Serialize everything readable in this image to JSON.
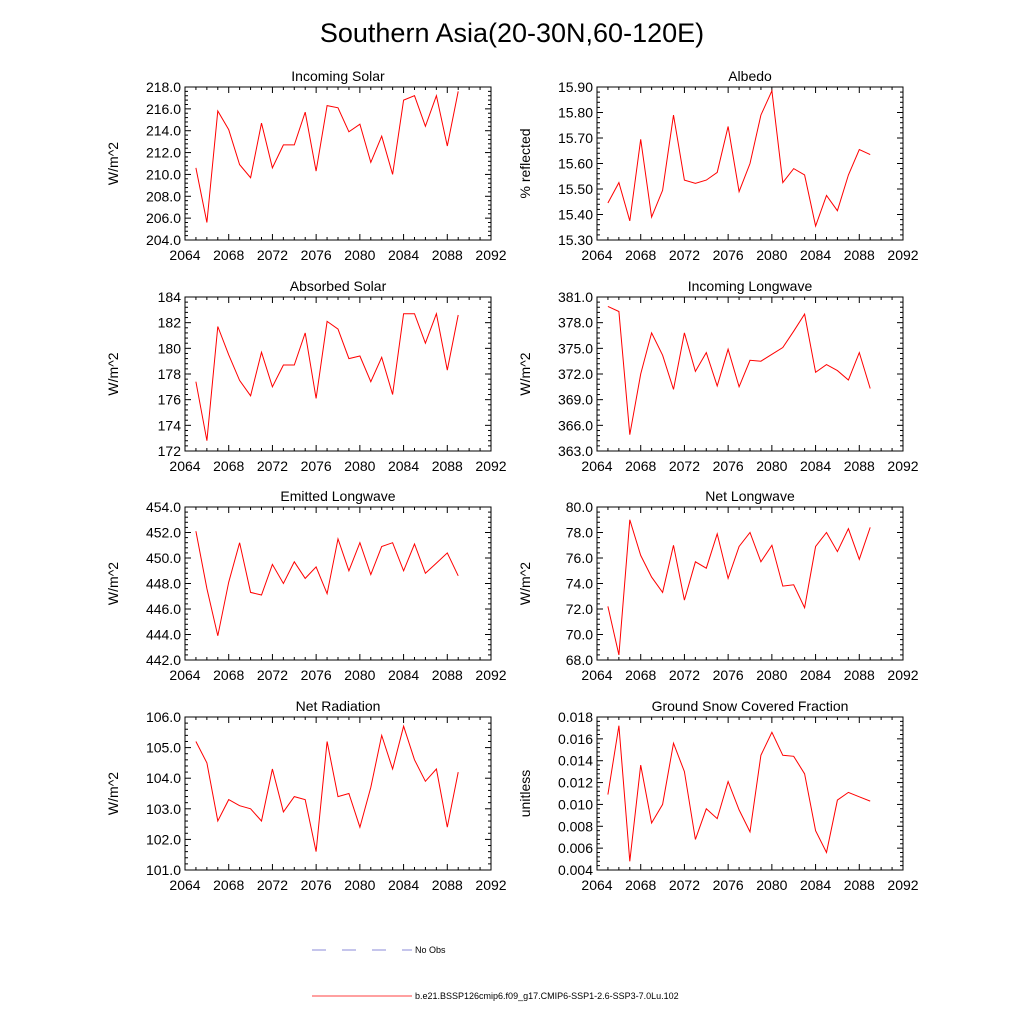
{
  "figure": {
    "title": "Southern Asia(20-30N,60-120E)",
    "series_color": "#ff0000",
    "obs_color": "#6666cc"
  },
  "legend": {
    "obs_label": "No Obs",
    "model_label": "b.e21.BSSP126cmip6.f09_g17.CMIP6-SSP1-2.6-SSP3-7.0Lu.102"
  },
  "chart_data": [
    {
      "type": "line",
      "title": "Incoming Solar",
      "ylabel": "W/m^2",
      "xlim": [
        2064,
        2092
      ],
      "ylim": [
        204.0,
        218.0
      ],
      "xticks": [
        "2064",
        "2068",
        "2072",
        "2076",
        "2080",
        "2084",
        "2088",
        "2092"
      ],
      "yticks": [
        "204.0",
        "206.0",
        "208.0",
        "210.0",
        "212.0",
        "214.0",
        "216.0",
        "218.0"
      ],
      "x": [
        2065,
        2066,
        2067,
        2068,
        2069,
        2070,
        2071,
        2072,
        2073,
        2074,
        2075,
        2076,
        2077,
        2078,
        2079,
        2080,
        2081,
        2082,
        2083,
        2084,
        2085,
        2086,
        2087,
        2088,
        2089
      ],
      "series": [
        {
          "values": [
            210.6,
            205.6,
            215.8,
            214.1,
            210.9,
            209.7,
            214.7,
            210.6,
            212.7,
            212.7,
            215.7,
            210.3,
            216.3,
            216.1,
            213.9,
            214.6,
            211.1,
            213.5,
            210.0,
            216.8,
            217.2,
            214.4,
            217.2,
            212.6,
            217.6
          ]
        }
      ]
    },
    {
      "type": "line",
      "title": "Albedo",
      "ylabel": "% reflected",
      "xlim": [
        2064,
        2092
      ],
      "ylim": [
        15.3,
        15.9
      ],
      "xticks": [
        "2064",
        "2068",
        "2072",
        "2076",
        "2080",
        "2084",
        "2088",
        "2092"
      ],
      "yticks": [
        "15.30",
        "15.40",
        "15.50",
        "15.60",
        "15.70",
        "15.80",
        "15.90"
      ],
      "x": [
        2065,
        2066,
        2067,
        2068,
        2069,
        2070,
        2071,
        2072,
        2073,
        2074,
        2075,
        2076,
        2077,
        2078,
        2079,
        2080,
        2081,
        2082,
        2083,
        2084,
        2085,
        2086,
        2087,
        2088,
        2089
      ],
      "series": [
        {
          "values": [
            15.445,
            15.525,
            15.375,
            15.695,
            15.39,
            15.495,
            15.79,
            15.535,
            15.522,
            15.535,
            15.565,
            15.745,
            15.49,
            15.6,
            15.79,
            15.885,
            15.525,
            15.58,
            15.555,
            15.355,
            15.475,
            15.415,
            15.555,
            15.655,
            15.635
          ]
        }
      ]
    },
    {
      "type": "line",
      "title": "Absorbed Solar",
      "ylabel": "W/m^2",
      "xlim": [
        2064,
        2092
      ],
      "ylim": [
        172,
        184
      ],
      "xticks": [
        "2064",
        "2068",
        "2072",
        "2076",
        "2080",
        "2084",
        "2088",
        "2092"
      ],
      "yticks": [
        "172",
        "174",
        "176",
        "178",
        "180",
        "182",
        "184"
      ],
      "x": [
        2065,
        2066,
        2067,
        2068,
        2069,
        2070,
        2071,
        2072,
        2073,
        2074,
        2075,
        2076,
        2077,
        2078,
        2079,
        2080,
        2081,
        2082,
        2083,
        2084,
        2085,
        2086,
        2087,
        2088,
        2089
      ],
      "series": [
        {
          "values": [
            177.4,
            172.8,
            181.7,
            179.5,
            177.5,
            176.3,
            179.7,
            177.0,
            178.7,
            178.7,
            181.2,
            176.1,
            182.1,
            181.5,
            179.2,
            179.4,
            177.4,
            179.3,
            176.4,
            182.7,
            182.7,
            180.4,
            182.7,
            178.3,
            182.6
          ]
        }
      ]
    },
    {
      "type": "line",
      "title": "Incoming Longwave",
      "ylabel": "W/m^2",
      "xlim": [
        2064,
        2092
      ],
      "ylim": [
        363.0,
        381.0
      ],
      "xticks": [
        "2064",
        "2068",
        "2072",
        "2076",
        "2080",
        "2084",
        "2088",
        "2092"
      ],
      "yticks": [
        "363.0",
        "366.0",
        "369.0",
        "372.0",
        "375.0",
        "378.0",
        "381.0"
      ],
      "x": [
        2065,
        2066,
        2067,
        2068,
        2069,
        2070,
        2071,
        2072,
        2073,
        2074,
        2075,
        2076,
        2077,
        2078,
        2079,
        2080,
        2081,
        2082,
        2083,
        2084,
        2085,
        2086,
        2087,
        2088,
        2089
      ],
      "series": [
        {
          "values": [
            379.9,
            379.3,
            364.9,
            372.0,
            376.8,
            374.2,
            370.2,
            376.8,
            372.3,
            374.5,
            370.6,
            374.9,
            370.5,
            373.6,
            373.5,
            374.3,
            375.1,
            377.0,
            379.0,
            372.2,
            373.1,
            372.4,
            371.3,
            374.5,
            370.3
          ]
        }
      ]
    },
    {
      "type": "line",
      "title": "Emitted Longwave",
      "ylabel": "W/m^2",
      "xlim": [
        2064,
        2092
      ],
      "ylim": [
        442.0,
        454.0
      ],
      "xticks": [
        "2064",
        "2068",
        "2072",
        "2076",
        "2080",
        "2084",
        "2088",
        "2092"
      ],
      "yticks": [
        "442.0",
        "444.0",
        "446.0",
        "448.0",
        "450.0",
        "452.0",
        "454.0"
      ],
      "x": [
        2065,
        2066,
        2067,
        2068,
        2069,
        2070,
        2071,
        2072,
        2073,
        2074,
        2075,
        2076,
        2077,
        2078,
        2079,
        2080,
        2081,
        2082,
        2083,
        2084,
        2085,
        2086,
        2087,
        2088,
        2089
      ],
      "series": [
        {
          "values": [
            452.1,
            447.6,
            443.9,
            448.1,
            451.2,
            447.3,
            447.1,
            449.5,
            448.0,
            449.7,
            448.4,
            449.3,
            447.2,
            451.5,
            449.0,
            451.2,
            448.7,
            450.9,
            451.2,
            449.0,
            451.1,
            448.8,
            449.6,
            450.4,
            448.6
          ]
        }
      ]
    },
    {
      "type": "line",
      "title": "Net Longwave",
      "ylabel": "W/m^2",
      "xlim": [
        2064,
        2092
      ],
      "ylim": [
        68.0,
        80.0
      ],
      "xticks": [
        "2064",
        "2068",
        "2072",
        "2076",
        "2080",
        "2084",
        "2088",
        "2092"
      ],
      "yticks": [
        "68.0",
        "70.0",
        "72.0",
        "74.0",
        "76.0",
        "78.0",
        "80.0"
      ],
      "x": [
        2065,
        2066,
        2067,
        2068,
        2069,
        2070,
        2071,
        2072,
        2073,
        2074,
        2075,
        2076,
        2077,
        2078,
        2079,
        2080,
        2081,
        2082,
        2083,
        2084,
        2085,
        2086,
        2087,
        2088,
        2089
      ],
      "series": [
        {
          "values": [
            72.2,
            68.4,
            79.0,
            76.2,
            74.5,
            73.3,
            77.0,
            72.7,
            75.7,
            75.2,
            77.9,
            74.4,
            76.9,
            78.0,
            75.7,
            77.0,
            73.8,
            73.9,
            72.1,
            76.9,
            78.0,
            76.5,
            78.3,
            75.9,
            78.4
          ]
        }
      ]
    },
    {
      "type": "line",
      "title": "Net Radiation",
      "ylabel": "W/m^2",
      "xlim": [
        2064,
        2092
      ],
      "ylim": [
        101.0,
        106.0
      ],
      "xticks": [
        "2064",
        "2068",
        "2072",
        "2076",
        "2080",
        "2084",
        "2088",
        "2092"
      ],
      "yticks": [
        "101.0",
        "102.0",
        "103.0",
        "104.0",
        "105.0",
        "106.0"
      ],
      "x": [
        2065,
        2066,
        2067,
        2068,
        2069,
        2070,
        2071,
        2072,
        2073,
        2074,
        2075,
        2076,
        2077,
        2078,
        2079,
        2080,
        2081,
        2082,
        2083,
        2084,
        2085,
        2086,
        2087,
        2088,
        2089
      ],
      "series": [
        {
          "values": [
            105.2,
            104.5,
            102.6,
            103.3,
            103.1,
            103.0,
            102.6,
            104.3,
            102.9,
            103.4,
            103.3,
            101.6,
            105.2,
            103.4,
            103.5,
            102.4,
            103.7,
            105.4,
            104.3,
            105.7,
            104.6,
            103.9,
            104.3,
            102.4,
            104.2
          ]
        }
      ]
    },
    {
      "type": "line",
      "title": "Ground Snow Covered Fraction",
      "ylabel": "unitless",
      "xlim": [
        2064,
        2092
      ],
      "ylim": [
        0.004,
        0.018
      ],
      "xticks": [
        "2064",
        "2068",
        "2072",
        "2076",
        "2080",
        "2084",
        "2088",
        "2092"
      ],
      "yticks": [
        "0.004",
        "0.006",
        "0.008",
        "0.010",
        "0.012",
        "0.014",
        "0.016",
        "0.018"
      ],
      "x": [
        2065,
        2066,
        2067,
        2068,
        2069,
        2070,
        2071,
        2072,
        2073,
        2074,
        2075,
        2076,
        2077,
        2078,
        2079,
        2080,
        2081,
        2082,
        2083,
        2084,
        2085,
        2086,
        2087,
        2088,
        2089
      ],
      "series": [
        {
          "values": [
            0.0109,
            0.0172,
            0.0048,
            0.0136,
            0.0083,
            0.01,
            0.0156,
            0.013,
            0.0068,
            0.0096,
            0.0087,
            0.0121,
            0.0095,
            0.0075,
            0.0145,
            0.0166,
            0.0145,
            0.0144,
            0.0128,
            0.0076,
            0.0056,
            0.0104,
            0.0111,
            0.0107,
            0.0103
          ]
        }
      ]
    }
  ]
}
